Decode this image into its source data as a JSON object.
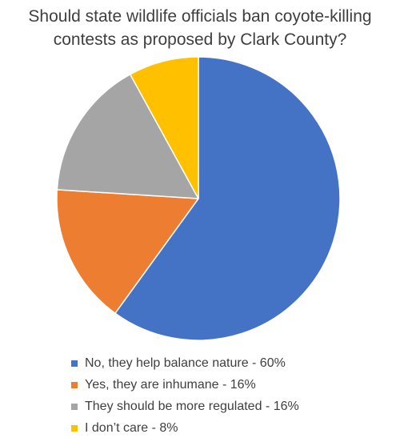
{
  "chart_data": {
    "type": "pie",
    "title_lines": [
      "Should state wildlife officials ban coyote-killing",
      "contests as proposed by Clark County?"
    ],
    "slices": [
      {
        "label": "No, they help balance nature - 60%",
        "value": 60,
        "color": "#4472c4"
      },
      {
        "label": "Yes, they are inhumane - 16%",
        "value": 16,
        "color": "#ed7d31"
      },
      {
        "label": "They should be more regulated - 16%",
        "value": 16,
        "color": "#a5a5a5"
      },
      {
        "label": "I don’t care - 8%",
        "value": 8,
        "color": "#ffc000"
      }
    ],
    "legend_position": "bottom"
  }
}
